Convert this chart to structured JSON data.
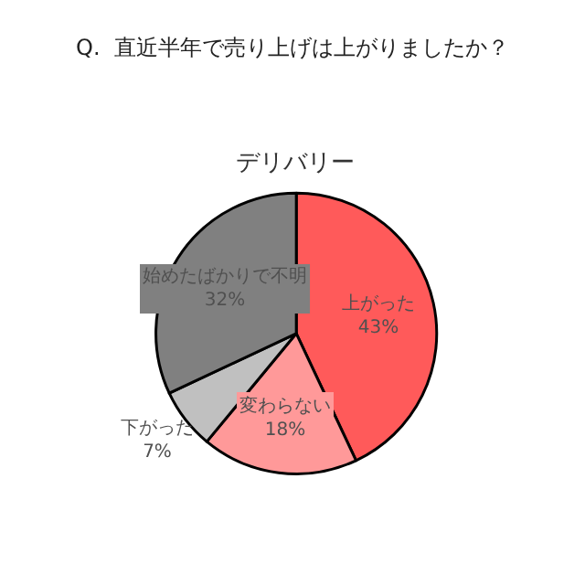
{
  "chart_data": {
    "type": "pie",
    "title": "Q.  直近半年で売り上げは上がりましたか？",
    "subtitle": "デリバリー",
    "categories": [
      "上がった",
      "変わらない",
      "下がった",
      "始めたばかりで不明"
    ],
    "values": [
      43,
      18,
      7,
      32
    ],
    "colors": [
      "#ff5a5a",
      "#ff9999",
      "#c0c0c0",
      "#808080"
    ],
    "value_labels": [
      "43%",
      "18%",
      "7%",
      "32%"
    ],
    "legend": false
  }
}
